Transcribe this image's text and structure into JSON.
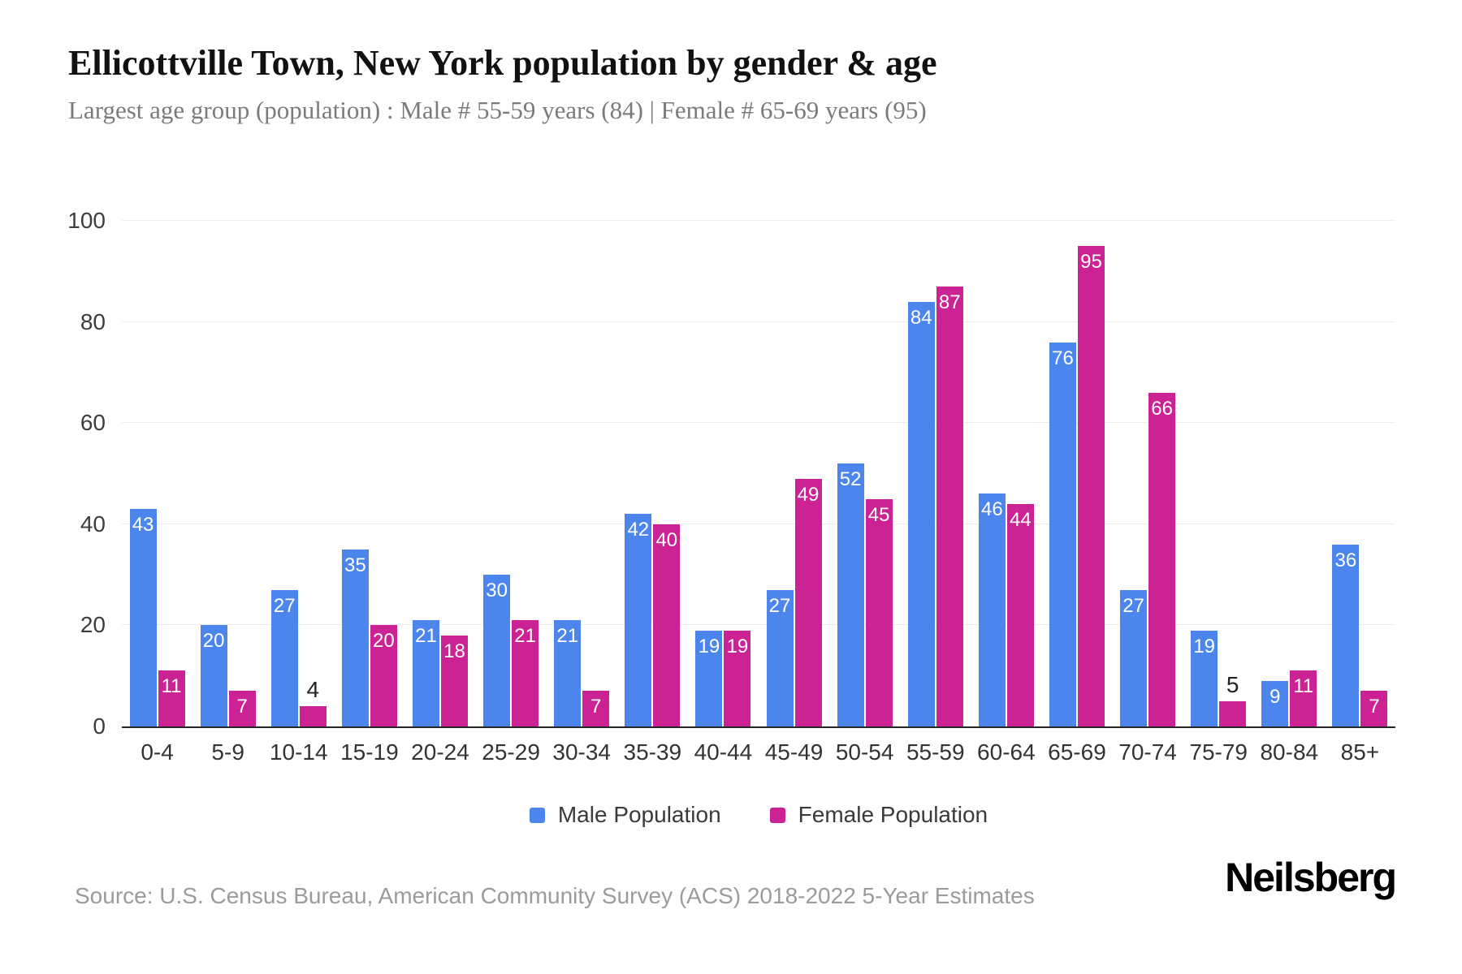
{
  "chart_data": {
    "type": "bar",
    "title": "Ellicottville Town, New York population by gender & age",
    "subtitle": "Largest age group (population) : Male # 55-59 years (84) | Female # 65-69 years (95)",
    "categories": [
      "0-4",
      "5-9",
      "10-14",
      "15-19",
      "20-24",
      "25-29",
      "30-34",
      "35-39",
      "40-44",
      "45-49",
      "50-54",
      "55-59",
      "60-64",
      "65-69",
      "70-74",
      "75-79",
      "80-84",
      "85+"
    ],
    "series": [
      {
        "name": "Male Population",
        "color": "#4C86EC",
        "values": [
          43,
          20,
          27,
          35,
          21,
          30,
          21,
          42,
          19,
          27,
          52,
          84,
          46,
          76,
          27,
          19,
          9,
          36
        ]
      },
      {
        "name": "Female Population",
        "color": "#CB2393",
        "values": [
          11,
          7,
          4,
          20,
          18,
          21,
          7,
          40,
          19,
          49,
          45,
          87,
          44,
          95,
          66,
          5,
          11,
          7
        ]
      }
    ],
    "xlabel": "",
    "ylabel": "",
    "ylim": [
      0,
      100
    ],
    "yticks": [
      0,
      20,
      40,
      60,
      80,
      100
    ],
    "grid": "horizontal",
    "legend_position": "bottom",
    "bar_label_color_inside": "#ffffff",
    "bar_label_color_outside": "#222222",
    "axis_line_color": "#262626",
    "grid_color": "#ededed"
  },
  "footer": {
    "source": "Source: U.S. Census Bureau, American Community Survey (ACS) 2018-2022 5-Year Estimates",
    "logo": "Neilsberg"
  }
}
